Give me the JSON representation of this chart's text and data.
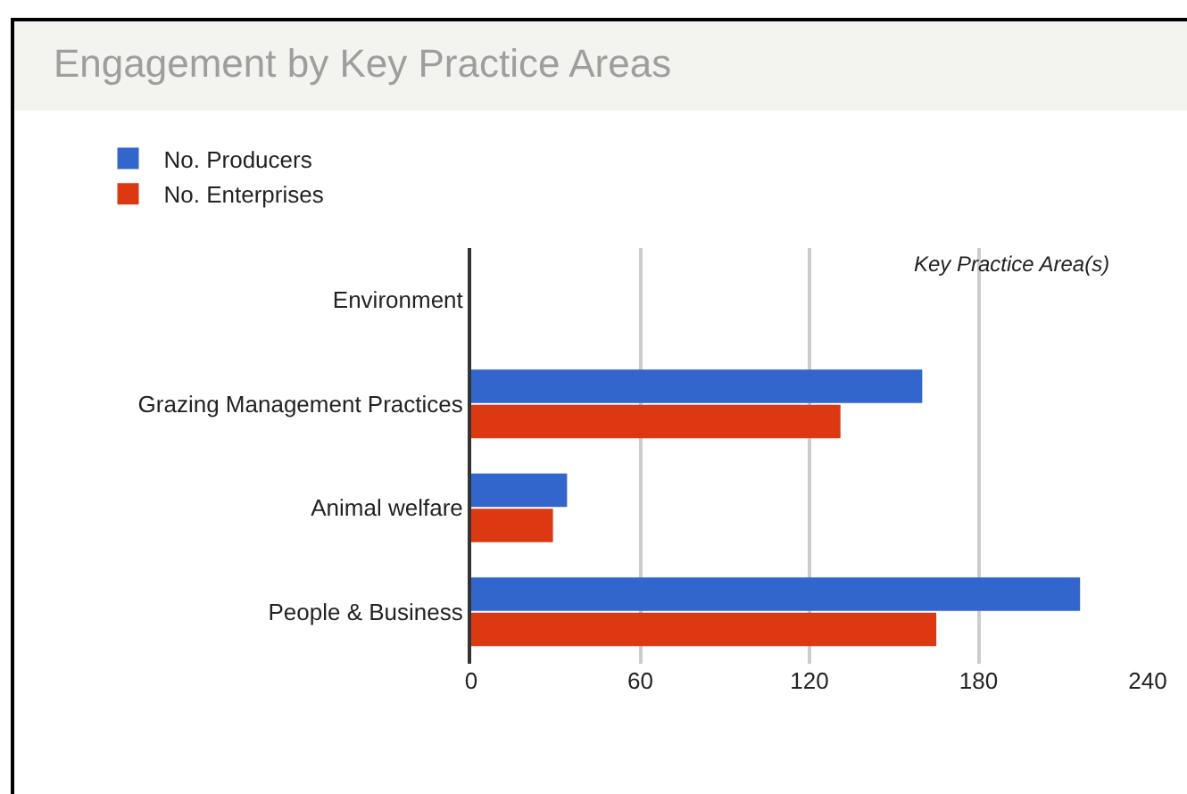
{
  "chart_data": {
    "type": "bar",
    "orientation": "horizontal",
    "title": "Engagement by Key Practice Areas",
    "ylabel": "Key Practice Area(s)",
    "categories": [
      "Environment",
      "Grazing Management Practices",
      "Animal welfare",
      "People & Business"
    ],
    "series": [
      {
        "name": "No. Producers",
        "color": "#3366cc",
        "values": [
          0,
          160,
          34,
          216
        ]
      },
      {
        "name": "No. Enterprises",
        "color": "#dc3912",
        "values": [
          0,
          131,
          29,
          165
        ]
      }
    ],
    "xlim": [
      0,
      240
    ],
    "xticks": [
      0,
      60,
      120,
      180,
      240
    ],
    "grid": "x",
    "legend": "top left"
  }
}
